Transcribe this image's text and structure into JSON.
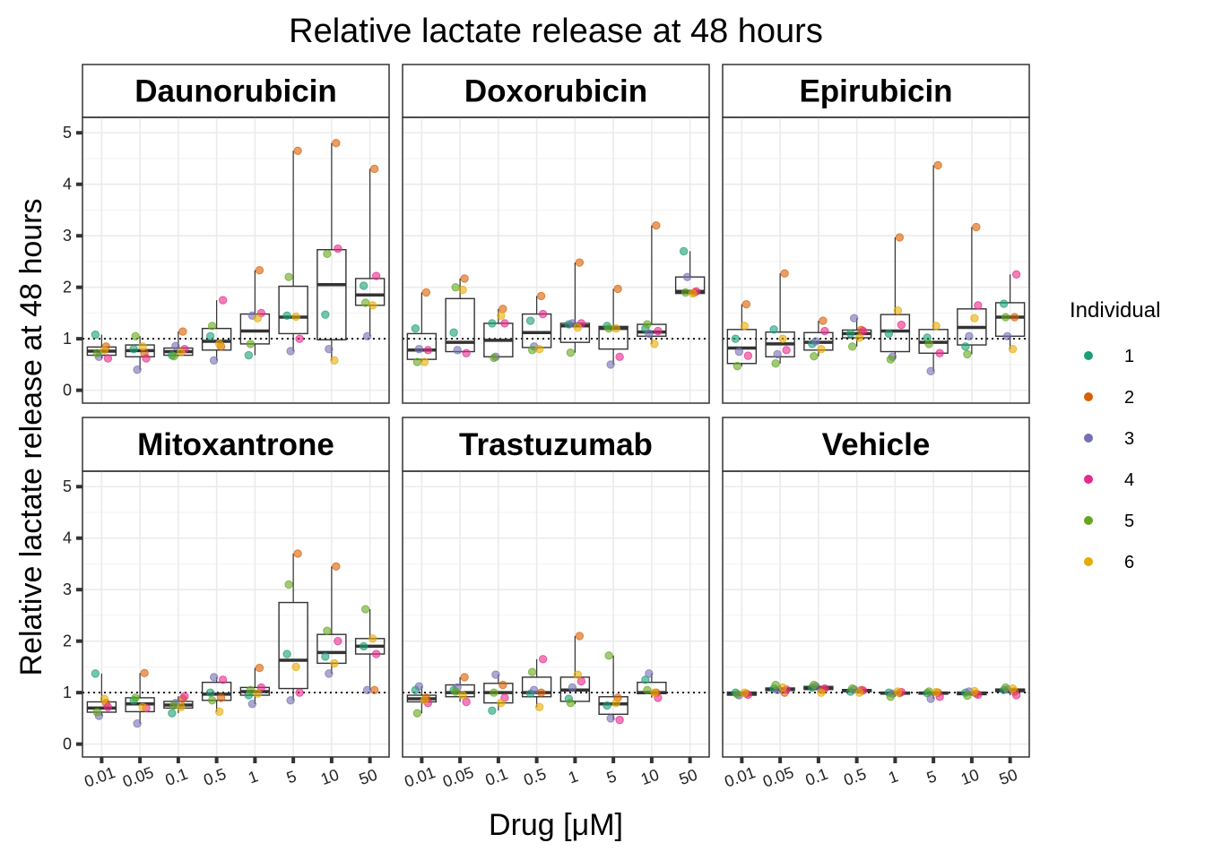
{
  "chart_data": {
    "type": "box",
    "title": "Relative lactate release at 48 hours",
    "xlabel": "Drug [μM]",
    "ylabel": "Relative lactate release at 48 hours",
    "ylim": [
      -0.25,
      5.3
    ],
    "y_ticks": [
      0,
      1,
      2,
      3,
      4,
      5
    ],
    "reference_line": 1,
    "grid": true,
    "legend": {
      "title": "Individual",
      "placement": "right",
      "entries": [
        "1",
        "2",
        "3",
        "4",
        "5",
        "6"
      ],
      "colors": [
        "#1b9e77",
        "#d95f02",
        "#7570b3",
        "#e7298a",
        "#66a61e",
        "#e6ab02"
      ]
    },
    "categories": [
      "0.01",
      "0.05",
      "0.1",
      "0.5",
      "1",
      "5",
      "10",
      "50"
    ],
    "panels": [
      {
        "name": "Daunorubicin",
        "boxes": [
          {
            "q1": 0.68,
            "median": 0.76,
            "q3": 0.84,
            "low": 0.62,
            "high": 1.08
          },
          {
            "q1": 0.65,
            "median": 0.77,
            "q3": 0.88,
            "low": 0.4,
            "high": 1.05
          },
          {
            "q1": 0.68,
            "median": 0.75,
            "q3": 0.82,
            "low": 0.66,
            "high": 1.14
          },
          {
            "q1": 0.78,
            "median": 0.95,
            "q3": 1.2,
            "low": 0.58,
            "high": 1.75
          },
          {
            "q1": 0.9,
            "median": 1.15,
            "q3": 1.48,
            "low": 0.68,
            "high": 2.33
          },
          {
            "q1": 1.1,
            "median": 1.42,
            "q3": 2.02,
            "low": 0.76,
            "high": 4.65
          },
          {
            "q1": 0.98,
            "median": 2.05,
            "q3": 2.73,
            "low": 0.58,
            "high": 4.8
          },
          {
            "q1": 1.65,
            "median": 1.85,
            "q3": 2.17,
            "low": 1.05,
            "high": 4.3
          }
        ],
        "points": [
          [
            1.08,
            0.85,
            0.65,
            0.62,
            0.72,
            0.78
          ],
          [
            0.8,
            0.72,
            0.4,
            0.62,
            1.05,
            0.85
          ],
          [
            0.68,
            1.14,
            0.86,
            0.8,
            0.66,
            0.74
          ],
          [
            1.05,
            0.85,
            0.58,
            1.75,
            1.25,
            0.9
          ],
          [
            0.68,
            2.33,
            1.45,
            1.5,
            0.9,
            1.4
          ],
          [
            1.45,
            4.65,
            0.76,
            1.0,
            2.2,
            1.43
          ],
          [
            1.47,
            4.8,
            0.8,
            2.75,
            2.65,
            0.58
          ],
          [
            2.03,
            4.3,
            1.05,
            2.22,
            1.7,
            1.65
          ]
        ]
      },
      {
        "name": "Doxorubicin",
        "boxes": [
          {
            "q1": 0.6,
            "median": 0.78,
            "q3": 1.1,
            "low": 0.55,
            "high": 1.9
          },
          {
            "q1": 0.75,
            "median": 0.93,
            "q3": 1.78,
            "low": 0.72,
            "high": 2.17
          },
          {
            "q1": 0.65,
            "median": 0.97,
            "q3": 1.3,
            "low": 0.63,
            "high": 1.58
          },
          {
            "q1": 0.83,
            "median": 1.12,
            "q3": 1.48,
            "low": 0.78,
            "high": 1.83
          },
          {
            "q1": 0.93,
            "median": 1.25,
            "q3": 1.3,
            "low": 0.73,
            "high": 2.48
          },
          {
            "q1": 0.8,
            "median": 1.2,
            "q3": 1.24,
            "low": 0.5,
            "high": 1.97
          },
          {
            "q1": 1.05,
            "median": 1.13,
            "q3": 1.28,
            "low": 0.9,
            "high": 3.2
          },
          {
            "q1": 1.88,
            "median": 1.92,
            "q3": 2.2,
            "low": 1.88,
            "high": 2.7
          }
        ],
        "points": [
          [
            1.2,
            1.9,
            0.8,
            0.78,
            0.55,
            0.55
          ],
          [
            1.12,
            2.17,
            0.78,
            0.72,
            2.0,
            1.95
          ],
          [
            1.3,
            1.58,
            0.65,
            1.3,
            0.63,
            1.45
          ],
          [
            1.35,
            1.83,
            0.85,
            1.48,
            0.78,
            0.8
          ],
          [
            1.28,
            2.48,
            1.3,
            1.3,
            0.73,
            1.22
          ],
          [
            1.25,
            1.97,
            0.5,
            0.65,
            1.2,
            1.2
          ],
          [
            1.2,
            3.2,
            1.1,
            1.15,
            1.28,
            0.9
          ],
          [
            2.7,
            1.9,
            2.2,
            1.92,
            1.9,
            1.88
          ]
        ]
      },
      {
        "name": "Epirubicin",
        "boxes": [
          {
            "q1": 0.52,
            "median": 0.82,
            "q3": 1.18,
            "low": 0.47,
            "high": 1.67
          },
          {
            "q1": 0.65,
            "median": 0.9,
            "q3": 1.13,
            "low": 0.52,
            "high": 2.27
          },
          {
            "q1": 0.78,
            "median": 0.93,
            "q3": 1.12,
            "low": 0.66,
            "high": 1.35
          },
          {
            "q1": 1.02,
            "median": 1.1,
            "q3": 1.17,
            "low": 0.85,
            "high": 1.4
          },
          {
            "q1": 0.75,
            "median": 1.15,
            "q3": 1.47,
            "low": 0.6,
            "high": 2.97
          },
          {
            "q1": 0.72,
            "median": 0.93,
            "q3": 1.18,
            "low": 0.37,
            "high": 4.37
          },
          {
            "q1": 0.88,
            "median": 1.22,
            "q3": 1.58,
            "low": 0.7,
            "high": 3.17
          },
          {
            "q1": 1.05,
            "median": 1.42,
            "q3": 1.7,
            "low": 0.8,
            "high": 2.25
          }
        ],
        "points": [
          [
            1.0,
            1.67,
            0.75,
            0.67,
            0.47,
            1.25
          ],
          [
            1.18,
            2.27,
            0.7,
            0.78,
            0.52,
            1.0
          ],
          [
            0.9,
            1.35,
            0.95,
            1.15,
            0.66,
            0.8
          ],
          [
            1.1,
            1.17,
            1.4,
            1.15,
            0.85,
            1.02
          ],
          [
            1.1,
            2.97,
            0.65,
            1.27,
            0.6,
            1.55
          ],
          [
            1.02,
            4.37,
            0.37,
            0.72,
            0.9,
            1.25
          ],
          [
            0.85,
            3.17,
            1.05,
            1.65,
            0.7,
            1.4
          ],
          [
            1.68,
            1.42,
            1.05,
            2.25,
            1.42,
            0.8
          ]
        ]
      },
      {
        "name": "Mitoxantrone",
        "boxes": [
          {
            "q1": 0.62,
            "median": 0.7,
            "q3": 0.82,
            "low": 0.55,
            "high": 1.37
          },
          {
            "q1": 0.63,
            "median": 0.78,
            "q3": 0.9,
            "low": 0.4,
            "high": 1.38
          },
          {
            "q1": 0.7,
            "median": 0.76,
            "q3": 0.83,
            "low": 0.6,
            "high": 0.93
          },
          {
            "q1": 0.85,
            "median": 0.97,
            "q3": 1.2,
            "low": 0.63,
            "high": 1.3
          },
          {
            "q1": 0.95,
            "median": 1.02,
            "q3": 1.1,
            "low": 0.78,
            "high": 1.48
          },
          {
            "q1": 1.08,
            "median": 1.63,
            "q3": 2.75,
            "low": 0.85,
            "high": 3.7
          },
          {
            "q1": 1.57,
            "median": 1.78,
            "q3": 2.13,
            "low": 1.37,
            "high": 3.45
          },
          {
            "q1": 1.75,
            "median": 1.9,
            "q3": 2.05,
            "low": 1.05,
            "high": 2.62
          }
        ],
        "points": [
          [
            1.37,
            0.8,
            0.55,
            0.72,
            0.62,
            0.88
          ],
          [
            0.85,
            1.38,
            0.4,
            0.7,
            0.9,
            0.72
          ],
          [
            0.6,
            0.88,
            0.8,
            0.93,
            0.75,
            0.72
          ],
          [
            1.0,
            0.9,
            1.3,
            1.25,
            0.85,
            0.63
          ],
          [
            0.95,
            1.48,
            0.78,
            1.1,
            1.05,
            0.98
          ],
          [
            1.75,
            3.7,
            0.85,
            1.0,
            3.1,
            1.5
          ],
          [
            1.7,
            3.45,
            1.37,
            2.0,
            2.2,
            1.57
          ],
          [
            1.9,
            1.05,
            1.05,
            1.75,
            2.62,
            2.05
          ]
        ]
      },
      {
        "name": "Trastuzumab",
        "boxes": [
          {
            "q1": 0.82,
            "median": 0.88,
            "q3": 0.95,
            "low": 0.6,
            "high": 1.12
          },
          {
            "q1": 0.92,
            "median": 1.0,
            "q3": 1.15,
            "low": 0.82,
            "high": 1.3
          },
          {
            "q1": 0.8,
            "median": 1.0,
            "q3": 1.18,
            "low": 0.65,
            "high": 1.35
          },
          {
            "q1": 0.92,
            "median": 1.0,
            "q3": 1.3,
            "low": 0.72,
            "high": 1.65
          },
          {
            "q1": 0.83,
            "median": 1.05,
            "q3": 1.3,
            "low": 0.78,
            "high": 2.1
          },
          {
            "q1": 0.58,
            "median": 0.78,
            "q3": 0.92,
            "low": 0.47,
            "high": 1.72
          },
          {
            "q1": 0.98,
            "median": 1.0,
            "q3": 1.2,
            "low": 0.9,
            "high": 1.37
          }
        ],
        "points": [
          [
            1.05,
            0.9,
            1.12,
            0.8,
            0.6,
            0.85
          ],
          [
            1.05,
            1.3,
            1.1,
            0.82,
            1.02,
            0.95
          ],
          [
            0.65,
            1.15,
            1.35,
            0.9,
            1.0,
            0.8
          ],
          [
            0.98,
            1.0,
            1.05,
            1.65,
            1.4,
            0.72
          ],
          [
            0.88,
            2.1,
            1.1,
            1.22,
            0.8,
            1.35
          ],
          [
            0.75,
            0.9,
            0.5,
            0.47,
            1.72,
            0.8
          ],
          [
            1.25,
            1.0,
            1.37,
            0.9,
            1.05,
            1.0
          ],
          []
        ]
      },
      {
        "name": "Vehicle",
        "boxes": [
          {
            "q1": 0.95,
            "median": 0.98,
            "q3": 1.01,
            "low": 0.94,
            "high": 1.02
          },
          {
            "q1": 1.04,
            "median": 1.06,
            "q3": 1.09,
            "low": 1.0,
            "high": 1.15
          },
          {
            "q1": 1.06,
            "median": 1.09,
            "q3": 1.12,
            "low": 1.0,
            "high": 1.15
          },
          {
            "q1": 1.02,
            "median": 1.04,
            "q3": 1.06,
            "low": 1.0,
            "high": 1.08
          },
          {
            "q1": 0.97,
            "median": 0.99,
            "q3": 1.01,
            "low": 0.92,
            "high": 1.02
          },
          {
            "q1": 0.97,
            "median": 0.99,
            "q3": 1.01,
            "low": 0.88,
            "high": 1.02
          },
          {
            "q1": 0.96,
            "median": 0.98,
            "q3": 1.01,
            "low": 0.94,
            "high": 1.03
          },
          {
            "q1": 1.02,
            "median": 1.04,
            "q3": 1.07,
            "low": 0.95,
            "high": 1.1
          }
        ],
        "points": [
          [
            1.0,
            0.98,
            0.95,
            0.96,
            0.97,
            1.0
          ],
          [
            1.08,
            1.0,
            1.05,
            1.06,
            1.15,
            1.1
          ],
          [
            1.1,
            1.05,
            1.12,
            1.08,
            1.15,
            1.0
          ],
          [
            1.02,
            1.05,
            1.06,
            1.04,
            1.08,
            1.0
          ],
          [
            1.0,
            0.99,
            0.98,
            1.01,
            0.92,
            1.02
          ],
          [
            0.99,
            1.0,
            0.88,
            0.92,
            1.02,
            1.01
          ],
          [
            1.0,
            0.98,
            1.02,
            0.96,
            0.94,
            1.03
          ],
          [
            1.05,
            1.02,
            1.06,
            0.95,
            1.1,
            1.08
          ]
        ]
      }
    ]
  }
}
